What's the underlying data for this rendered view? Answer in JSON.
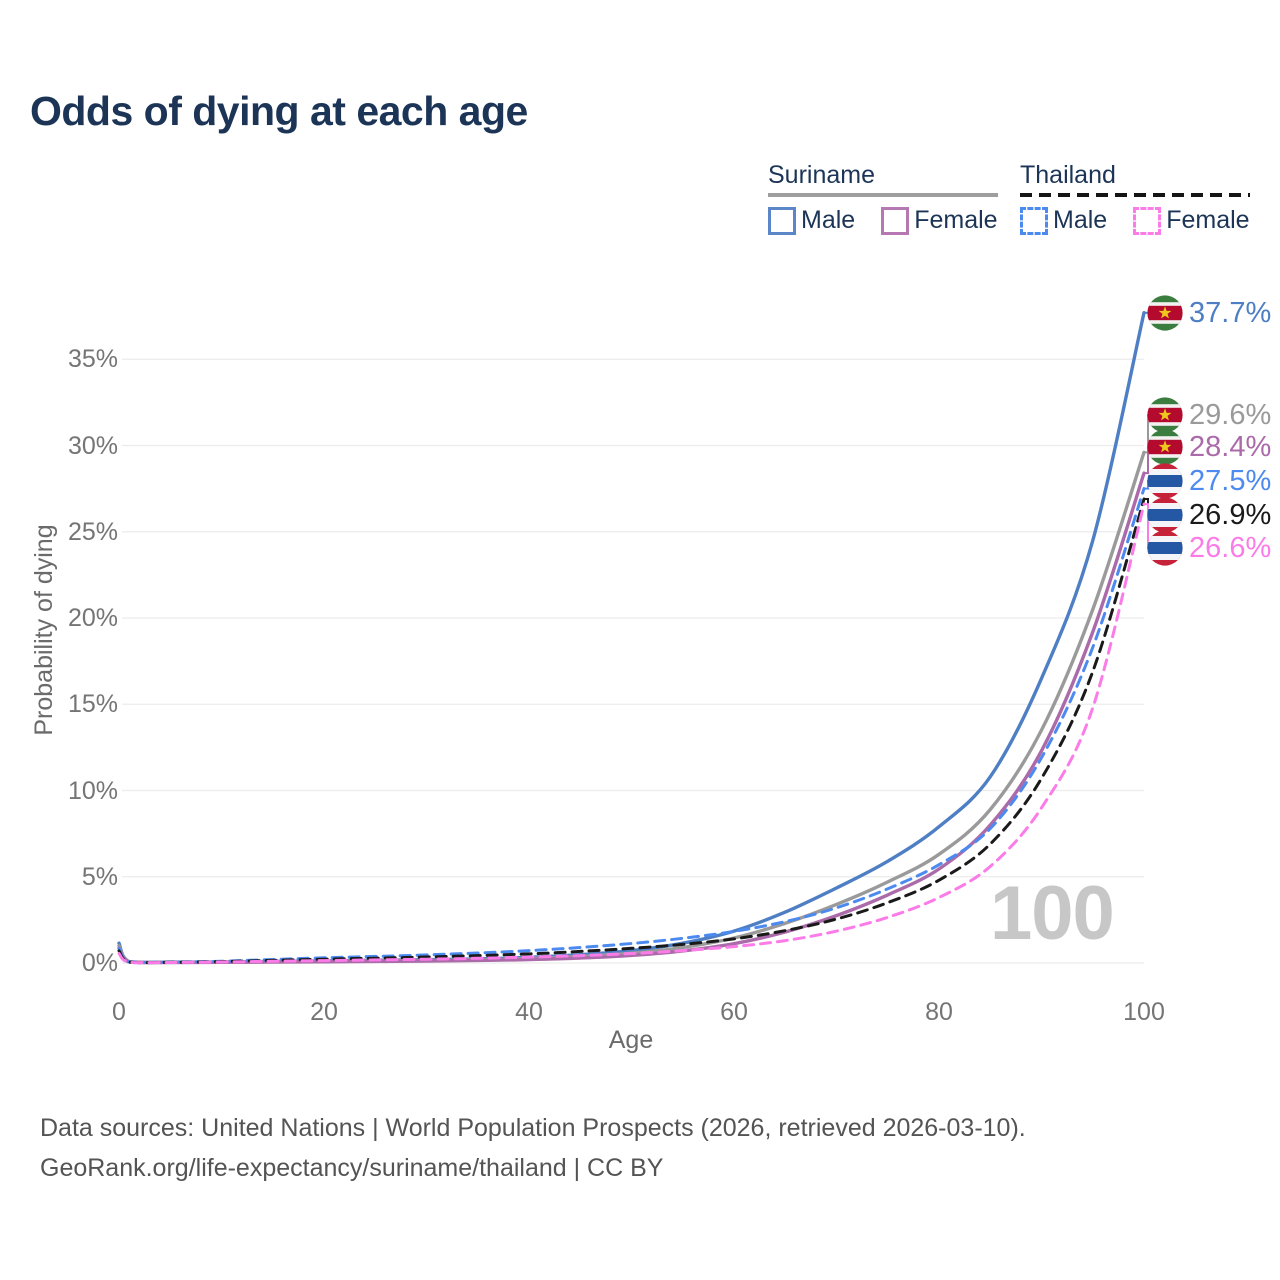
{
  "title": "Odds of dying at each age",
  "legend": {
    "groups": [
      {
        "name": "Suriname",
        "line_style": "solid",
        "underline_color": "#9e9e9e",
        "items": [
          {
            "label": "Male",
            "color": "#5b86c7"
          },
          {
            "label": "Female",
            "color": "#b678b2"
          }
        ]
      },
      {
        "name": "Thailand",
        "line_style": "dashed",
        "underline_color": "#151515",
        "items": [
          {
            "label": "Male",
            "color": "#4d8af0"
          },
          {
            "label": "Female",
            "color": "#fb7ce8"
          }
        ]
      }
    ]
  },
  "chart_data": {
    "type": "line",
    "title": "Odds of dying at each age",
    "xlabel": "Age",
    "ylabel": "Probability of dying",
    "xlim": [
      0,
      100
    ],
    "ylim": [
      0,
      38
    ],
    "grid": true,
    "legend_position": "top-right",
    "watermark": "100",
    "x_ticks": [
      {
        "v": 0,
        "label": "0"
      },
      {
        "v": 20,
        "label": "20"
      },
      {
        "v": 40,
        "label": "40"
      },
      {
        "v": 60,
        "label": "60"
      },
      {
        "v": 80,
        "label": "80"
      },
      {
        "v": 100,
        "label": "100"
      }
    ],
    "y_ticks": [
      {
        "v": 0,
        "label": "0%"
      },
      {
        "v": 5,
        "label": "5%"
      },
      {
        "v": 10,
        "label": "10%"
      },
      {
        "v": 15,
        "label": "15%"
      },
      {
        "v": 20,
        "label": "20%"
      },
      {
        "v": 25,
        "label": "25%"
      },
      {
        "v": 30,
        "label": "30%"
      },
      {
        "v": 35,
        "label": "35%"
      }
    ],
    "x": [
      0,
      1,
      5,
      10,
      15,
      20,
      25,
      30,
      35,
      40,
      45,
      50,
      55,
      60,
      65,
      70,
      75,
      80,
      85,
      90,
      95,
      100
    ],
    "series": [
      {
        "name": "Suriname Male",
        "country": "Suriname",
        "color": "#4e7fc4",
        "dash": "solid",
        "end_label": "37.7%",
        "end_value": 37.7,
        "flag": "suriname",
        "values": [
          1.15,
          0.08,
          0.05,
          0.06,
          0.09,
          0.13,
          0.16,
          0.19,
          0.24,
          0.33,
          0.48,
          0.72,
          1.15,
          1.85,
          2.95,
          4.35,
          5.9,
          7.9,
          10.8,
          16.5,
          24.5,
          37.7
        ]
      },
      {
        "name": "Suriname",
        "country": "Suriname",
        "color": "#9a9a9a",
        "dash": "solid",
        "end_label": "29.6%",
        "end_value": 29.6,
        "flag": "suriname",
        "values": [
          1.0,
          0.07,
          0.04,
          0.05,
          0.07,
          0.1,
          0.13,
          0.15,
          0.19,
          0.26,
          0.38,
          0.57,
          0.9,
          1.45,
          2.3,
          3.4,
          4.7,
          6.3,
          8.9,
          13.5,
          20.5,
          29.6
        ]
      },
      {
        "name": "Suriname Female",
        "country": "Suriname",
        "color": "#ab6aa9",
        "dash": "solid",
        "end_label": "28.4%",
        "end_value": 28.4,
        "flag": "suriname",
        "values": [
          0.85,
          0.06,
          0.03,
          0.04,
          0.05,
          0.07,
          0.09,
          0.11,
          0.15,
          0.2,
          0.29,
          0.44,
          0.7,
          1.12,
          1.8,
          2.75,
          3.95,
          5.45,
          8.0,
          12.3,
          19.2,
          28.4
        ]
      },
      {
        "name": "Thailand Male",
        "country": "Thailand",
        "color": "#4d8af0",
        "dash": "dashed",
        "end_label": "27.5%",
        "end_value": 27.5,
        "flag": "thailand",
        "values": [
          0.85,
          0.06,
          0.05,
          0.1,
          0.2,
          0.3,
          0.38,
          0.47,
          0.58,
          0.72,
          0.9,
          1.13,
          1.43,
          1.83,
          2.4,
          3.2,
          4.3,
          5.7,
          7.8,
          11.9,
          18.3,
          27.5
        ]
      },
      {
        "name": "Thailand",
        "country": "Thailand",
        "color": "#1a1a1a",
        "dash": "dashed",
        "end_label": "26.9%",
        "end_value": 26.9,
        "flag": "thailand",
        "values": [
          0.7,
          0.05,
          0.04,
          0.08,
          0.15,
          0.22,
          0.28,
          0.35,
          0.43,
          0.53,
          0.67,
          0.85,
          1.08,
          1.4,
          1.88,
          2.55,
          3.5,
          4.8,
          6.9,
          10.7,
          16.9,
          26.9
        ]
      },
      {
        "name": "Thailand Female",
        "country": "Thailand",
        "color": "#fb7ce8",
        "dash": "dashed",
        "end_label": "26.6%",
        "end_value": 26.6,
        "flag": "thailand",
        "values": [
          0.55,
          0.04,
          0.03,
          0.06,
          0.1,
          0.14,
          0.18,
          0.22,
          0.27,
          0.34,
          0.43,
          0.55,
          0.72,
          0.95,
          1.3,
          1.85,
          2.65,
          3.8,
          5.6,
          9.0,
          14.8,
          26.6
        ]
      }
    ]
  },
  "footer": {
    "line1": "Data sources: United Nations | World Population Prospects (2026, retrieved 2026-03-10).",
    "line2": "GeoRank.org/life-expectancy/suriname/thailand | CC BY"
  }
}
